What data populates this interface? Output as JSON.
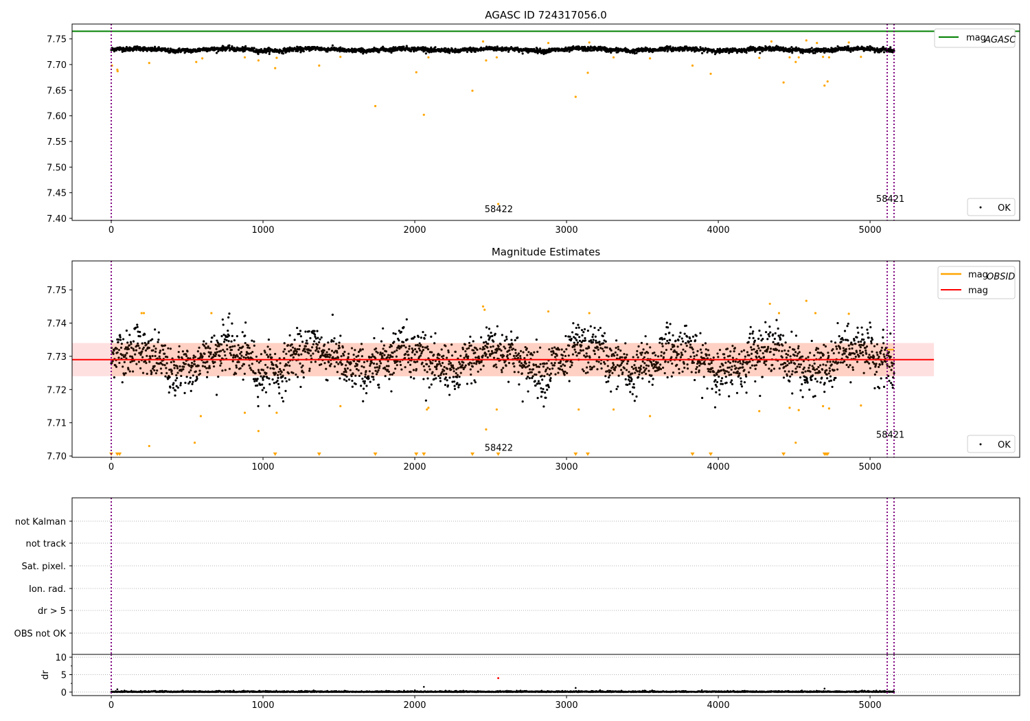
{
  "chart_data": [
    {
      "type": "scatter",
      "title": "AGASC ID 724317056.0",
      "xlim": [
        -258,
        5986
      ],
      "ylim": [
        7.396,
        7.779
      ],
      "xticks": [
        0,
        1000,
        2000,
        3000,
        4000,
        5000
      ],
      "yticks": [
        7.4,
        7.45,
        7.5,
        7.55,
        7.6,
        7.65,
        7.7,
        7.75
      ],
      "ytick_labels": [
        "7.40",
        "7.45",
        "7.50",
        "7.55",
        "7.60",
        "7.65",
        "7.70",
        "7.75"
      ],
      "mag_agasc": 7.765,
      "legend_upper": {
        "label": "mag",
        "subscript": "AGASC",
        "placement": "top-right"
      },
      "legend_lower": {
        "label": "OK",
        "placement": "bottom-right"
      },
      "vlines": [
        0,
        5113,
        5158
      ],
      "annotations": [
        {
          "text": "58422",
          "x": 2460,
          "y": 7.412
        },
        {
          "text": "58421",
          "x": 5040,
          "y": 7.432
        }
      ],
      "series_ok": {
        "name": "OK",
        "color": "#000000",
        "n_points": 2600,
        "x_range": [
          0,
          5160
        ],
        "mean": 7.729,
        "spread": 0.004
      },
      "series_outliers": {
        "color": "#ffa500",
        "points": [
          [
            5,
            7.698
          ],
          [
            40,
            7.69
          ],
          [
            42,
            7.687
          ],
          [
            250,
            7.703
          ],
          [
            560,
            7.705
          ],
          [
            600,
            7.712
          ],
          [
            880,
            7.714
          ],
          [
            970,
            7.708
          ],
          [
            1080,
            7.693
          ],
          [
            1090,
            7.713
          ],
          [
            1370,
            7.698
          ],
          [
            1510,
            7.715
          ],
          [
            1740,
            7.619
          ],
          [
            2010,
            7.685
          ],
          [
            2060,
            7.602
          ],
          [
            2090,
            7.714
          ],
          [
            2380,
            7.649
          ],
          [
            2450,
            7.745
          ],
          [
            2470,
            7.708
          ],
          [
            2540,
            7.714
          ],
          [
            2550,
            7.428
          ],
          [
            2880,
            7.742
          ],
          [
            3060,
            7.637
          ],
          [
            3140,
            7.684
          ],
          [
            3150,
            7.743
          ],
          [
            3310,
            7.714
          ],
          [
            3550,
            7.712
          ],
          [
            3830,
            7.698
          ],
          [
            3950,
            7.682
          ],
          [
            4270,
            7.713
          ],
          [
            4350,
            7.745
          ],
          [
            4430,
            7.665
          ],
          [
            4470,
            7.714
          ],
          [
            4510,
            7.705
          ],
          [
            4530,
            7.714
          ],
          [
            4580,
            7.747
          ],
          [
            4650,
            7.742
          ],
          [
            4690,
            7.715
          ],
          [
            4700,
            7.659
          ],
          [
            4720,
            7.667
          ],
          [
            4730,
            7.714
          ],
          [
            4860,
            7.743
          ],
          [
            4940,
            7.715
          ]
        ]
      }
    },
    {
      "type": "scatter",
      "title": "Magnitude Estimates",
      "xlim": [
        -258,
        5986
      ],
      "ylim": [
        7.6996,
        7.7587
      ],
      "xticks": [
        0,
        1000,
        2000,
        3000,
        4000,
        5000
      ],
      "yticks": [
        7.7,
        7.71,
        7.72,
        7.73,
        7.74,
        7.75
      ],
      "ytick_labels": [
        "7.70",
        "7.71",
        "7.72",
        "7.73",
        "7.74",
        "7.75"
      ],
      "mag": 7.729,
      "mag_band": [
        7.724,
        7.734
      ],
      "mag_line_xrange": [
        -258,
        5421
      ],
      "mag_obsid_segment": {
        "x": [
          5113,
          5158
        ],
        "y": 7.732
      },
      "legend_upper": {
        "entries": [
          {
            "label": "mag",
            "subscript": "OBSID",
            "color": "#ffa500"
          },
          {
            "label": "mag",
            "subscript": "",
            "color": "#ff0000"
          }
        ],
        "placement": "top-right"
      },
      "legend_lower": {
        "label": "OK",
        "placement": "bottom-right"
      },
      "vlines": [
        0,
        5113,
        5158
      ],
      "annotations": [
        {
          "text": "58422",
          "x": 2460,
          "y": 7.7016
        },
        {
          "text": "58421",
          "x": 5040,
          "y": 7.7055
        }
      ],
      "clipped_below_markers_x": [
        0,
        40,
        55,
        1080,
        1370,
        1740,
        2010,
        2060,
        2380,
        2550,
        3060,
        3140,
        3830,
        3950,
        4430,
        4700,
        4710,
        4720
      ],
      "series_ok": {
        "name": "OK",
        "color": "#000000",
        "n_points": 2600,
        "mean": 7.729,
        "spread": 0.004
      },
      "series_outliers": {
        "color": "#ffa500",
        "points": [
          [
            200,
            7.743
          ],
          [
            215,
            7.743
          ],
          [
            250,
            7.703
          ],
          [
            550,
            7.704
          ],
          [
            590,
            7.712
          ],
          [
            660,
            7.743
          ],
          [
            880,
            7.713
          ],
          [
            970,
            7.7075
          ],
          [
            1090,
            7.713
          ],
          [
            1510,
            7.715
          ],
          [
            2080,
            7.714
          ],
          [
            2090,
            7.7145
          ],
          [
            2450,
            7.745
          ],
          [
            2460,
            7.744
          ],
          [
            2470,
            7.708
          ],
          [
            2540,
            7.714
          ],
          [
            2880,
            7.7435
          ],
          [
            3080,
            7.714
          ],
          [
            3150,
            7.743
          ],
          [
            3310,
            7.714
          ],
          [
            3550,
            7.712
          ],
          [
            4270,
            7.7135
          ],
          [
            4340,
            7.7458
          ],
          [
            4400,
            7.743
          ],
          [
            4470,
            7.7145
          ],
          [
            4510,
            7.704
          ],
          [
            4530,
            7.7138
          ],
          [
            4580,
            7.7467
          ],
          [
            4640,
            7.743
          ],
          [
            4690,
            7.715
          ],
          [
            4730,
            7.7143
          ],
          [
            4860,
            7.7428
          ],
          [
            4940,
            7.7152
          ]
        ]
      }
    },
    {
      "type": "scatter",
      "title": "",
      "xlim": [
        -258,
        5986
      ],
      "categories": [
        "not Kalman",
        "not track",
        "Sat. pixel.",
        "Ion. rad.",
        "dr > 5",
        "OBS not OK"
      ],
      "vlines": [
        0,
        5113,
        5158
      ],
      "grid": true
    },
    {
      "type": "scatter",
      "ylabel": "dr",
      "xlim": [
        -258,
        5986
      ],
      "ylim": [
        -1,
        10.8
      ],
      "xticks": [
        0,
        1000,
        2000,
        3000,
        4000,
        5000
      ],
      "xtick_labels": [
        "0",
        "1000",
        "2000",
        "3000",
        "4000",
        "5000"
      ],
      "yticks": [
        0,
        5,
        10
      ],
      "ytick_labels": [
        "0",
        "5",
        "10"
      ],
      "vlines": [
        0,
        5113,
        5158
      ],
      "series_ok": {
        "color": "#000000",
        "typical_range": [
          0,
          0.6
        ],
        "spikes": [
          [
            2060,
            1.5
          ],
          [
            3060,
            1.2
          ],
          [
            4700,
            1.0
          ],
          [
            40,
            0.8
          ]
        ]
      },
      "series_flagged": {
        "color": "#ff0000",
        "points": [
          [
            2550,
            4.0
          ]
        ]
      }
    }
  ]
}
